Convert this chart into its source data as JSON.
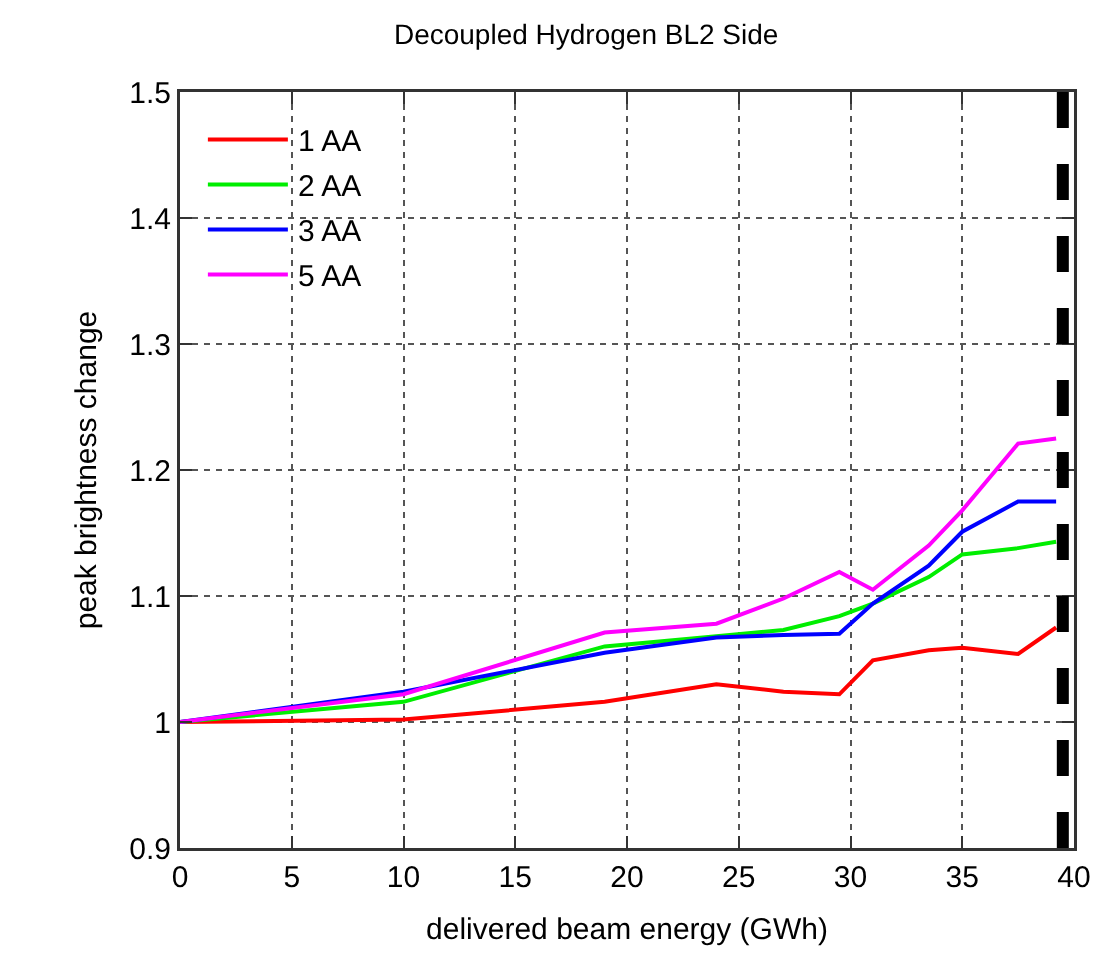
{
  "chart_data": {
    "type": "line",
    "title": "Decoupled Hydrogen BL2 Side",
    "xlabel": "delivered beam energy (GWh)",
    "ylabel": "peak brightness change",
    "x": [
      0,
      10,
      19,
      24,
      27,
      29.5,
      31,
      33.5,
      35,
      37.5,
      39.2
    ],
    "series": [
      {
        "name": "1 AA",
        "color": "#ff0000",
        "values": [
          1,
          1.002,
          1.016,
          1.03,
          1.024,
          1.022,
          1.049,
          1.057,
          1.059,
          1.054,
          1.075
        ]
      },
      {
        "name": "2 AA",
        "color": "#00ee00",
        "values": [
          1,
          1.016,
          1.06,
          1.068,
          1.073,
          1.084,
          1.094,
          1.115,
          1.133,
          1.138,
          1.143
        ]
      },
      {
        "name": "3 AA",
        "color": "#0000ff",
        "values": [
          1,
          1.024,
          1.055,
          1.067,
          1.069,
          1.07,
          1.094,
          1.124,
          1.151,
          1.175,
          1.175
        ]
      },
      {
        "name": "5 AA",
        "color": "#ff00ff",
        "values": [
          1,
          1.022,
          1.071,
          1.078,
          1.098,
          1.119,
          1.105,
          1.14,
          1.168,
          1.221,
          1.225
        ]
      }
    ],
    "xlim": [
      0,
      40
    ],
    "xticks": [
      0,
      5,
      10,
      15,
      20,
      25,
      30,
      35,
      40
    ],
    "ylim": [
      0.9,
      1.5
    ],
    "yticks": [
      0.9,
      1,
      1.1,
      1.2,
      1.3,
      1.4,
      1.5
    ],
    "grid": true,
    "legend": "top left",
    "marker": "none",
    "line_style": "solid",
    "ref_lines": [
      {
        "axis": "x",
        "value": 39.5,
        "color": "#000000",
        "line_style": "dashed"
      }
    ]
  }
}
